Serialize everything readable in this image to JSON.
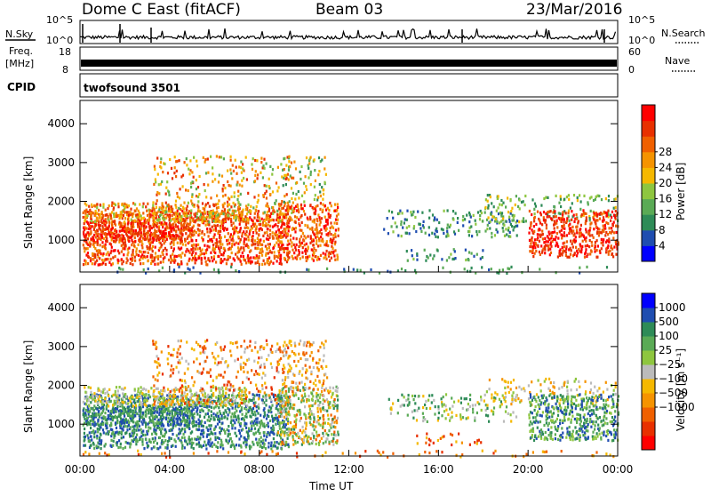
{
  "header": {
    "station": "Dome C East (fitACF)",
    "beam": "Beam 03",
    "date": "23/Mar/2016"
  },
  "strips": {
    "nsky_label": "N.Sky",
    "nsky_top": "10^5",
    "nsky_bottom": "10^0",
    "nsearch_label": "N.Search",
    "freq_label_1": "Freq.",
    "freq_label_2": "[MHz]",
    "freq_top": "18",
    "freq_bottom": "8",
    "nave_label": "Nave",
    "nave_top": "60",
    "nave_bottom": "0",
    "cpid_label": "CPID",
    "cpid_value": "twofsound 3501"
  },
  "colors": {
    "power_scale": [
      "#0000ff",
      "#1f4db0",
      "#2e8b57",
      "#5aaa55",
      "#8ec63f",
      "#f5b800",
      "#f59300",
      "#f06000",
      "#e83000",
      "#ff0000"
    ],
    "velocity_scale": [
      "#0000ff",
      "#1f4db0",
      "#2e8b57",
      "#5aaa55",
      "#8ec63f",
      "#bbbbbb",
      "#f5b800",
      "#f59300",
      "#f06000",
      "#e83000",
      "#ff0000"
    ]
  },
  "chart_data": [
    {
      "type": "heatmap",
      "name": "power",
      "ylabel": "Slant Range [km]",
      "xlabel": "",
      "yticks": [
        1000,
        2000,
        3000,
        4000
      ],
      "ylim": [
        180,
        4600
      ],
      "colorbar_label": "Power [dB]",
      "colorbar_ticks": [
        "4",
        "8",
        "12",
        "16",
        "20",
        "24",
        "28"
      ]
    },
    {
      "type": "heatmap",
      "name": "velocity",
      "ylabel": "Slant Range [km]",
      "xlabel": "Time UT",
      "yticks": [
        1000,
        2000,
        3000,
        4000
      ],
      "ylim": [
        180,
        4600
      ],
      "xticks": [
        "00:00",
        "04:00",
        "08:00",
        "12:00",
        "16:00",
        "20:00",
        "00:00"
      ],
      "colorbar_label": "Velocity [m s⁻¹]",
      "colorbar_ticks": [
        "1000",
        "500",
        "100",
        "25",
        "−25",
        "−100",
        "−500",
        "−1000"
      ]
    }
  ]
}
